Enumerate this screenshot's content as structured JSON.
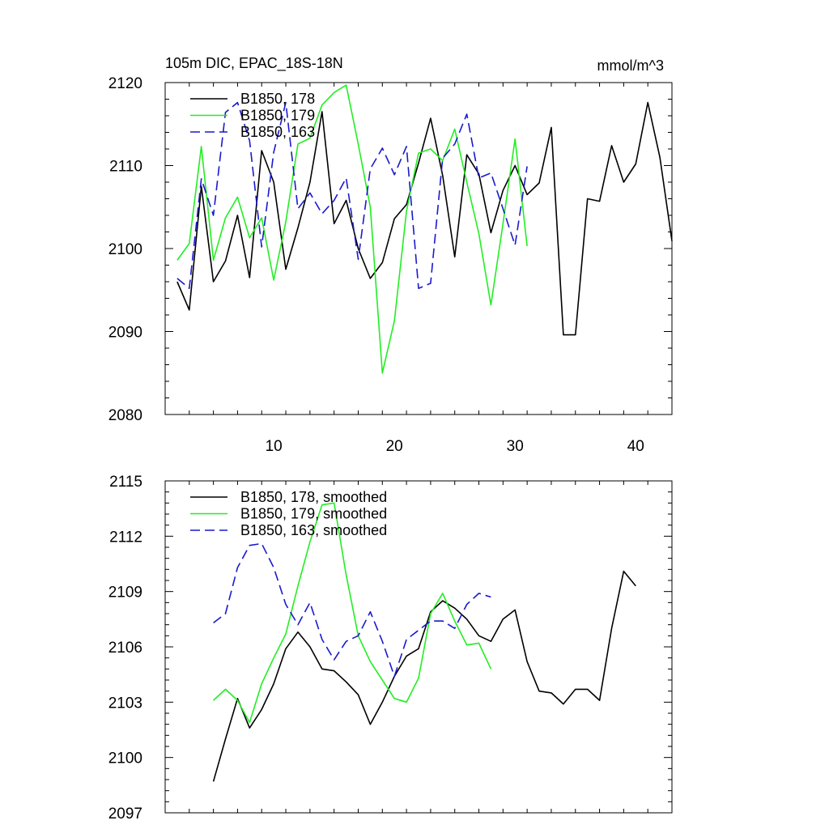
{
  "chart_data": [
    {
      "type": "line",
      "title": "105m DIC, EPAC_18S-18N",
      "units": "mmol/m^3",
      "xlim": [
        1,
        43
      ],
      "ylim": [
        2080,
        2120
      ],
      "xticks": [
        10,
        20,
        30,
        40
      ],
      "yticks": [
        2080,
        2090,
        2100,
        2110,
        2120
      ],
      "legend_position": "top-left",
      "series": [
        {
          "name": "B1850, 178",
          "color": "#000000",
          "dash": "solid",
          "x": [
            2,
            3,
            4,
            5,
            6,
            7,
            8,
            9,
            10,
            11,
            12,
            13,
            14,
            15,
            16,
            17,
            18,
            19,
            20,
            21,
            22,
            23,
            24,
            25,
            26,
            27,
            28,
            29,
            30,
            31,
            32,
            33,
            34,
            35,
            36,
            37,
            38,
            39,
            40,
            41,
            42,
            43
          ],
          "y": [
            2096,
            2092.6,
            2107.5,
            2096,
            2098.5,
            2104,
            2096.5,
            2111.8,
            2108,
            2097.5,
            2102.5,
            2108,
            2116.5,
            2103,
            2105.8,
            2100,
            2096.4,
            2098.3,
            2103.6,
            2105.3,
            2110.3,
            2115.7,
            2108.8,
            2099,
            2111.3,
            2109,
            2101.9,
            2107,
            2110,
            2106.5,
            2107.9,
            2114.6,
            2089.6,
            2089.6,
            2106,
            2105.7,
            2112.4,
            2108,
            2110.2,
            2117.6,
            2111,
            2100.9
          ]
        },
        {
          "name": "B1850, 179",
          "color": "#22ee22",
          "dash": "solid",
          "x": [
            2,
            3,
            4,
            5,
            6,
            7,
            8,
            9,
            10,
            11,
            12,
            13,
            14,
            15,
            16,
            17,
            18,
            19,
            20,
            21,
            22,
            23,
            24,
            25,
            26,
            27,
            28,
            29,
            30,
            31
          ],
          "y": [
            2098.6,
            2100.6,
            2112.3,
            2098.6,
            2103.7,
            2106.2,
            2101.3,
            2103.7,
            2096.2,
            2103.2,
            2112.6,
            2113.3,
            2117.3,
            2118.8,
            2119.7,
            2112.6,
            2105,
            2085,
            2091.3,
            2104.5,
            2111.5,
            2112,
            2110.6,
            2114.4,
            2108,
            2101.8,
            2093.2,
            2103,
            2113.2,
            2100.3
          ]
        },
        {
          "name": "B1850, 163",
          "color": "#1a1acc",
          "dash": "dashed",
          "x": [
            2,
            3,
            4,
            5,
            6,
            7,
            8,
            9,
            10,
            11,
            12,
            13,
            14,
            15,
            16,
            17,
            18,
            19,
            20,
            21,
            22,
            23,
            24,
            25,
            26,
            27,
            28,
            29,
            30,
            31
          ],
          "y": [
            2096.4,
            2095.2,
            2108.4,
            2104,
            2116.4,
            2117.6,
            2113,
            2100.2,
            2111.6,
            2117.6,
            2104.8,
            2106.7,
            2104.2,
            2105.8,
            2108.5,
            2098.7,
            2109.6,
            2112.1,
            2108.9,
            2112.3,
            2095.2,
            2095.8,
            2110.9,
            2112.6,
            2116.2,
            2108.5,
            2109.1,
            2104.8,
            2100.4,
            2109.9
          ]
        }
      ]
    },
    {
      "type": "line",
      "xlim": [
        1,
        43
      ],
      "ylim": [
        2097,
        2115
      ],
      "xticks": [
        10,
        20,
        30,
        40
      ],
      "yticks": [
        2097,
        2100,
        2103,
        2106,
        2109,
        2112,
        2115
      ],
      "legend_position": "top-left",
      "series": [
        {
          "name": "B1850, 178, smoothed",
          "color": "#000000",
          "dash": "solid",
          "x": [
            5,
            6,
            7,
            8,
            9,
            10,
            11,
            12,
            13,
            14,
            15,
            16,
            17,
            18,
            19,
            20,
            21,
            22,
            23,
            24,
            25,
            26,
            27,
            28,
            29,
            30,
            31,
            32,
            33,
            34,
            35,
            36,
            37,
            38,
            39,
            40
          ],
          "y": [
            2098.7,
            2101,
            2103.2,
            2101.6,
            2102.6,
            2104,
            2105.9,
            2106.8,
            2106,
            2104.8,
            2104.7,
            2104.1,
            2103.4,
            2101.8,
            2103,
            2104.4,
            2105.5,
            2105.9,
            2107.9,
            2108.5,
            2108.1,
            2107.5,
            2106.6,
            2106.3,
            2107.5,
            2108,
            2105.2,
            2103.6,
            2103.5,
            2102.9,
            2103.7,
            2103.7,
            2103.1,
            2107,
            2110.1,
            2109.3
          ]
        },
        {
          "name": "B1850, 179, smoothed",
          "color": "#22ee22",
          "dash": "solid",
          "x": [
            5,
            6,
            7,
            8,
            9,
            10,
            11,
            12,
            13,
            14,
            15,
            16,
            17,
            18,
            19,
            20,
            21,
            22,
            23,
            24,
            25,
            26,
            27,
            28
          ],
          "y": [
            2103.1,
            2103.7,
            2103.1,
            2101.9,
            2104,
            2105.4,
            2106.7,
            2109.3,
            2111.7,
            2113.7,
            2113.8,
            2109.9,
            2106.6,
            2105.2,
            2104.2,
            2103.2,
            2103,
            2104.3,
            2107.8,
            2108.9,
            2107.4,
            2106.1,
            2106.2,
            2104.8
          ]
        },
        {
          "name": "B1850, 163, smoothed",
          "color": "#1a1acc",
          "dash": "dashed",
          "x": [
            5,
            6,
            7,
            8,
            9,
            10,
            11,
            12,
            13,
            14,
            15,
            16,
            17,
            18,
            19,
            20,
            21,
            22,
            23,
            24,
            25,
            26,
            27,
            28
          ],
          "y": [
            2107.3,
            2107.8,
            2110.3,
            2111.5,
            2111.6,
            2110.3,
            2108.3,
            2107.2,
            2108.4,
            2106.4,
            2105.3,
            2106.3,
            2106.6,
            2107.9,
            2106.3,
            2104.4,
            2106.4,
            2106.9,
            2107.4,
            2107.4,
            2107,
            2108.3,
            2108.9,
            2108.7
          ]
        }
      ]
    }
  ]
}
